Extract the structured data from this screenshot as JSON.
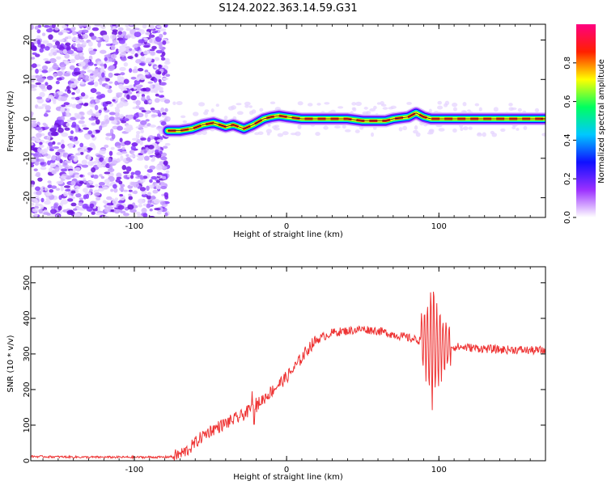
{
  "title": "S124.2022.363.14.59.G31",
  "chart_data": [
    {
      "type": "heatmap",
      "xlabel": "Height of straight line (km)",
      "ylabel": "Frequency (Hz)",
      "xlim": [
        -168,
        170
      ],
      "ylim": [
        -25,
        24
      ],
      "x_ticks": [
        -100,
        0,
        100
      ],
      "y_ticks": [
        -20,
        -10,
        0,
        10,
        20
      ],
      "colorbar": {
        "label": "Normalized spectral amplitude",
        "range": [
          0,
          1
        ],
        "ticks": [
          0.0,
          0.2,
          0.4,
          0.6,
          0.8
        ],
        "tick_labels": [
          "0.0",
          "0.2",
          "0.4",
          "0.6",
          "0.8"
        ],
        "colors": [
          "#ffffff",
          "#9b30ff",
          "#1010ff",
          "#00c8ff",
          "#00ff60",
          "#ffff00",
          "#ff2000",
          "#ff0080"
        ]
      },
      "noise_region_x": [
        -168,
        -78
      ],
      "ridge": {
        "x": [
          -78,
          -70,
          -62,
          -55,
          -48,
          -40,
          -35,
          -28,
          -22,
          -15,
          -10,
          -5,
          0,
          10,
          20,
          40,
          50,
          60,
          65,
          70,
          80,
          85,
          90,
          95,
          100,
          110,
          120,
          140,
          160,
          170
        ],
        "freq": [
          -3.0,
          -3.0,
          -2.5,
          -1.5,
          -1.0,
          -2.0,
          -1.5,
          -2.5,
          -1.5,
          0.0,
          0.5,
          0.8,
          0.5,
          0.0,
          0.0,
          0.0,
          -0.5,
          -0.5,
          -0.5,
          0.0,
          0.5,
          1.5,
          0.5,
          0.0,
          0.0,
          0.0,
          0.0,
          0.0,
          0.0,
          0.0
        ]
      }
    },
    {
      "type": "line",
      "xlabel": "Height of straight line (km)",
      "ylabel": "SNR (10 * v/v)",
      "xlim": [
        -168,
        170
      ],
      "ylim": [
        0,
        545
      ],
      "x_ticks": [
        -100,
        0,
        100
      ],
      "y_ticks": [
        0,
        100,
        200,
        300,
        400,
        500
      ],
      "series_color": "#ee3333",
      "series": [
        {
          "x": [
            -168,
            -150,
            -130,
            -110,
            -90,
            -80,
            -75,
            -70,
            -65,
            -60,
            -55,
            -50,
            -45,
            -40,
            -35,
            -30,
            -25,
            -20,
            -15,
            -10,
            -5,
            0,
            5,
            10,
            15,
            20,
            25,
            30,
            40,
            50,
            60,
            70,
            80,
            85,
            90,
            95,
            100,
            105,
            110,
            120,
            130,
            140,
            150,
            160,
            170
          ],
          "values": [
            12,
            11,
            10,
            10,
            10,
            10,
            12,
            18,
            30,
            50,
            70,
            85,
            95,
            105,
            115,
            125,
            140,
            155,
            175,
            195,
            215,
            235,
            260,
            290,
            320,
            340,
            350,
            360,
            365,
            370,
            365,
            355,
            345,
            340,
            335,
            330,
            325,
            322,
            320,
            318,
            315,
            312,
            312,
            310,
            310
          ]
        }
      ]
    }
  ]
}
